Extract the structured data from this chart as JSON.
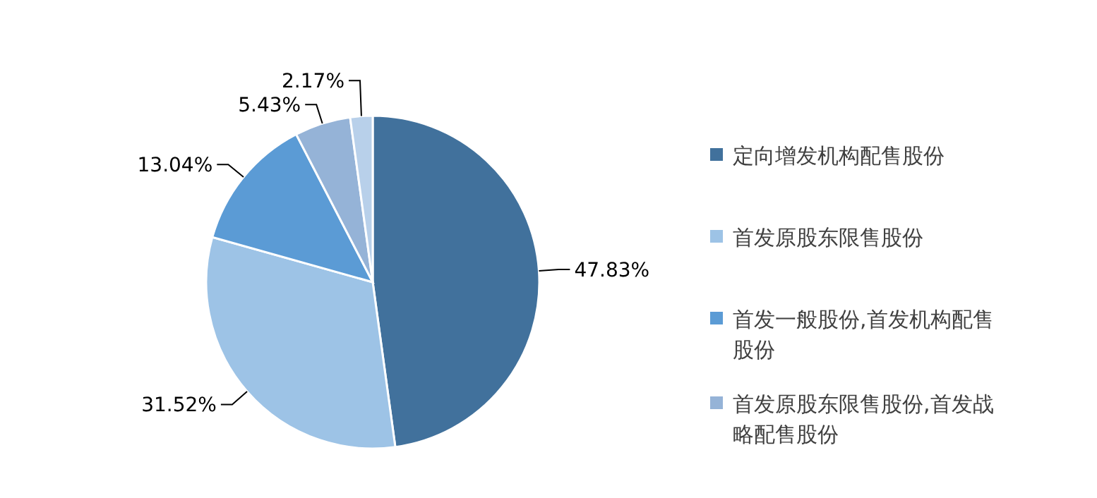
{
  "chart_data": {
    "type": "pie",
    "categories": [
      "定向增发机构配售股份",
      "首发原股东限售股份",
      "首发一般股份,首发机构配售股份",
      "首发原股东限售股份,首发战略配售股份",
      null
    ],
    "values": [
      47.83,
      31.52,
      13.04,
      5.43,
      2.17
    ],
    "colors": [
      "#41719c",
      "#9dc3e6",
      "#5b9bd5",
      "#95b3d7",
      "#b8d0ea"
    ],
    "value_labels": [
      "47.83%",
      "31.52%",
      "13.04%",
      "5.43%",
      "2.17%"
    ],
    "legend": "right"
  }
}
